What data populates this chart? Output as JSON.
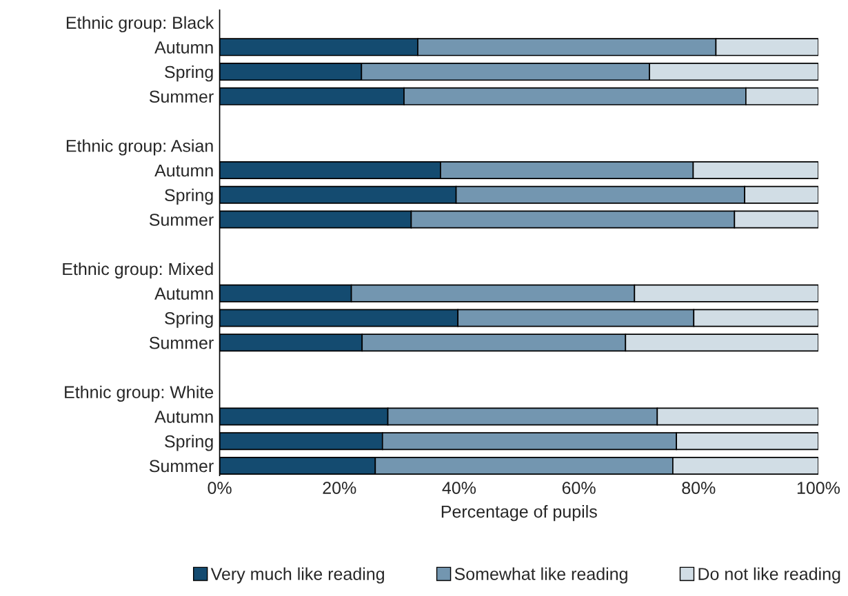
{
  "chart_data": {
    "type": "bar",
    "orientation": "horizontal",
    "stacked": true,
    "xlabel": "Percentage of pupils",
    "categories": [
      "Ethnic group: Black",
      "Autumn",
      "Spring",
      "Summer",
      null,
      "Ethnic group: Asian",
      "Autumn",
      "Spring",
      "Summer",
      null,
      "Ethnic group: Mixed",
      "Autumn",
      "Spring",
      "Summer",
      null,
      "Ethnic group: White",
      "Autumn",
      "Spring",
      "Summer"
    ],
    "series": [
      {
        "name": "Very much like reading",
        "color": "#144b70",
        "values": [
          null,
          33.1,
          23.7,
          30.8,
          null,
          null,
          36.9,
          39.5,
          32.0,
          null,
          null,
          22.0,
          39.8,
          23.8,
          null,
          null,
          28.1,
          27.2,
          26.0
        ]
      },
      {
        "name": "Somewhat like reading",
        "color": "#7396b0",
        "values": [
          null,
          49.8,
          48.1,
          57.1,
          null,
          null,
          42.2,
          48.2,
          54.0,
          null,
          null,
          47.3,
          39.4,
          44.0,
          null,
          null,
          45.0,
          49.1,
          49.7
        ]
      },
      {
        "name": "Do not like reading",
        "color": "#d1dde5",
        "values": [
          null,
          17.1,
          28.2,
          12.1,
          null,
          null,
          20.9,
          12.3,
          14.0,
          null,
          null,
          30.7,
          20.8,
          32.2,
          null,
          null,
          26.9,
          23.7,
          24.3
        ]
      }
    ],
    "xlim": [
      0,
      100
    ],
    "xticks": [
      {
        "value": 0,
        "label": "0%"
      },
      {
        "value": 20,
        "label": "20%"
      },
      {
        "value": 40,
        "label": "40%"
      },
      {
        "value": 60,
        "label": "60%"
      },
      {
        "value": 80,
        "label": "80%"
      },
      {
        "value": 100,
        "label": "100%"
      }
    ],
    "legend": "bottom"
  }
}
